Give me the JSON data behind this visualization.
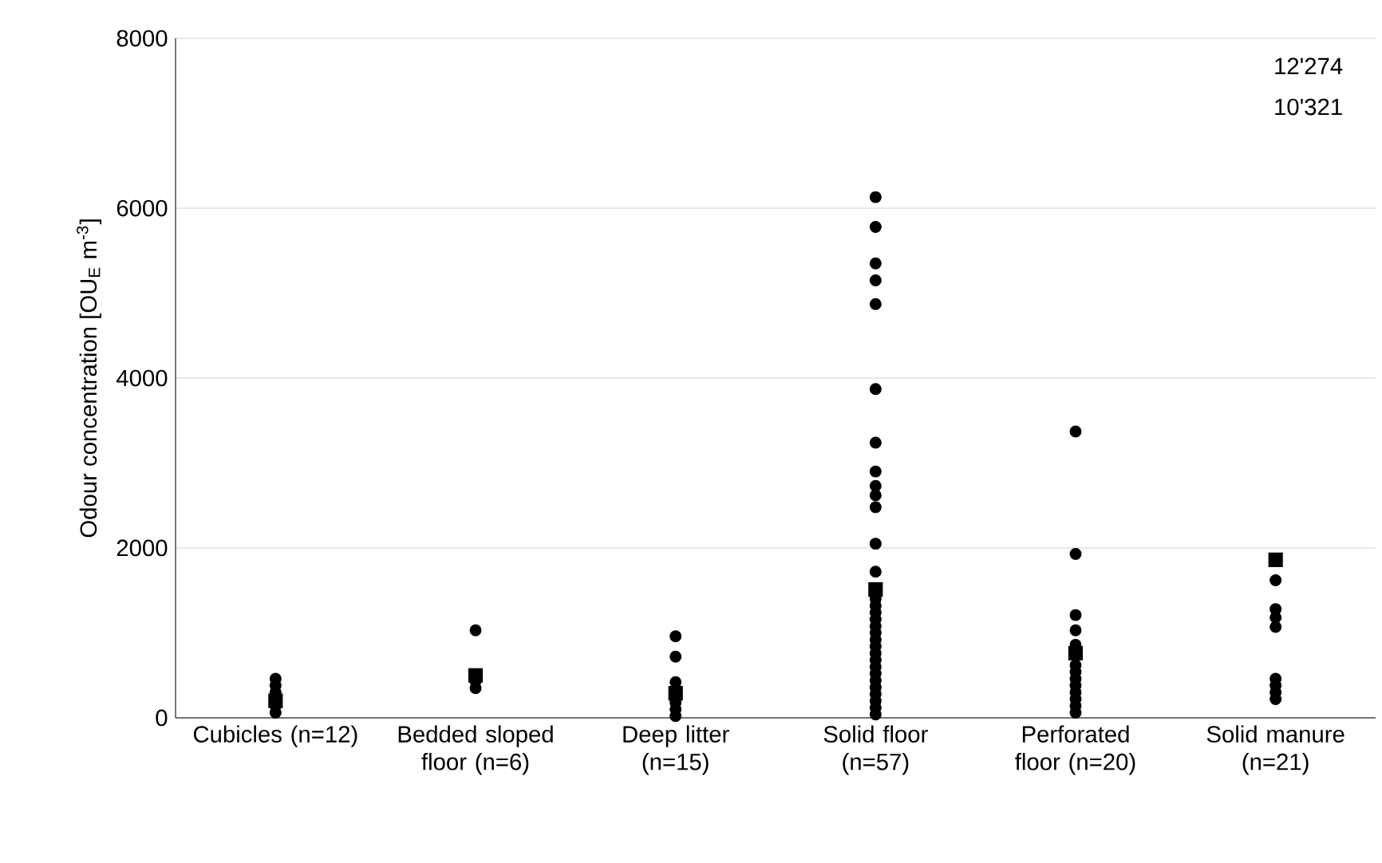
{
  "chart_data": {
    "type": "scatter",
    "ylabel": "Odour concentration [OU$_{E}$ m$^{-3}$]",
    "categories": [
      "Cubicles (n=12)",
      "Bedded sloped floor (n=6)",
      "Deep litter (n=15)",
      "Solid floor (n=57)",
      "Perforated floor (n=20)",
      "Solid manure (n=21)"
    ],
    "ylim": [
      0,
      8000
    ],
    "yticks": [
      0,
      2000,
      4000,
      6000,
      8000
    ],
    "grid": "y",
    "annotations": [
      "12'274",
      "10'321"
    ],
    "series": [
      {
        "marker": "circle",
        "color": "#000000",
        "x": [
          "Cubicles (n=12)",
          "Cubicles (n=12)",
          "Cubicles (n=12)",
          "Cubicles (n=12)",
          "Cubicles (n=12)",
          "Bedded sloped floor (n=6)",
          "Bedded sloped floor (n=6)",
          "Bedded sloped floor (n=6)",
          "Deep litter (n=15)",
          "Deep litter (n=15)",
          "Deep litter (n=15)",
          "Deep litter (n=15)",
          "Deep litter (n=15)",
          "Deep litter (n=15)",
          "Solid floor (n=57)",
          "Solid floor (n=57)",
          "Solid floor (n=57)",
          "Solid floor (n=57)",
          "Solid floor (n=57)",
          "Solid floor (n=57)",
          "Solid floor (n=57)",
          "Solid floor (n=57)",
          "Solid floor (n=57)",
          "Solid floor (n=57)",
          "Solid floor (n=57)",
          "Solid floor (n=57)",
          "Solid floor (n=57)",
          "Solid floor (n=57)",
          "Solid floor (n=57)",
          "Solid floor (n=57)",
          "Solid floor (n=57)",
          "Solid floor (n=57)",
          "Solid floor (n=57)",
          "Solid floor (n=57)",
          "Solid floor (n=57)",
          "Solid floor (n=57)",
          "Solid floor (n=57)",
          "Solid floor (n=57)",
          "Solid floor (n=57)",
          "Solid floor (n=57)",
          "Solid floor (n=57)",
          "Solid floor (n=57)",
          "Solid floor (n=57)",
          "Solid floor (n=57)",
          "Solid floor (n=57)",
          "Perforated floor (n=20)",
          "Perforated floor (n=20)",
          "Perforated floor (n=20)",
          "Perforated floor (n=20)",
          "Perforated floor (n=20)",
          "Perforated floor (n=20)",
          "Perforated floor (n=20)",
          "Perforated floor (n=20)",
          "Perforated floor (n=20)",
          "Perforated floor (n=20)",
          "Perforated floor (n=20)",
          "Perforated floor (n=20)",
          "Perforated floor (n=20)",
          "Solid manure (n=21)",
          "Solid manure (n=21)",
          "Solid manure (n=21)",
          "Solid manure (n=21)",
          "Solid manure (n=21)",
          "Solid manure (n=21)",
          "Solid manure (n=21)",
          "Solid manure (n=21)"
        ],
        "values": [
          460,
          380,
          300,
          140,
          60,
          1030,
          430,
          350,
          960,
          720,
          420,
          180,
          100,
          20,
          6130,
          5780,
          5350,
          5150,
          4870,
          3870,
          3240,
          2900,
          2730,
          2620,
          2480,
          2050,
          1720,
          1400,
          1320,
          1240,
          1160,
          1080,
          1000,
          920,
          840,
          760,
          680,
          600,
          520,
          440,
          360,
          280,
          200,
          120,
          40,
          3370,
          1930,
          1210,
          1030,
          860,
          620,
          540,
          460,
          380,
          300,
          220,
          140,
          60,
          1620,
          1280,
          1180,
          1070,
          460,
          380,
          300,
          220
        ]
      },
      {
        "marker": "square",
        "color": "#000000",
        "x": [
          "Cubicles (n=12)",
          "Bedded sloped floor (n=6)",
          "Deep litter (n=15)",
          "Solid floor (n=57)",
          "Perforated floor (n=20)",
          "Solid manure (n=21)"
        ],
        "values": [
          200,
          500,
          290,
          1510,
          760,
          1860
        ]
      }
    ]
  }
}
